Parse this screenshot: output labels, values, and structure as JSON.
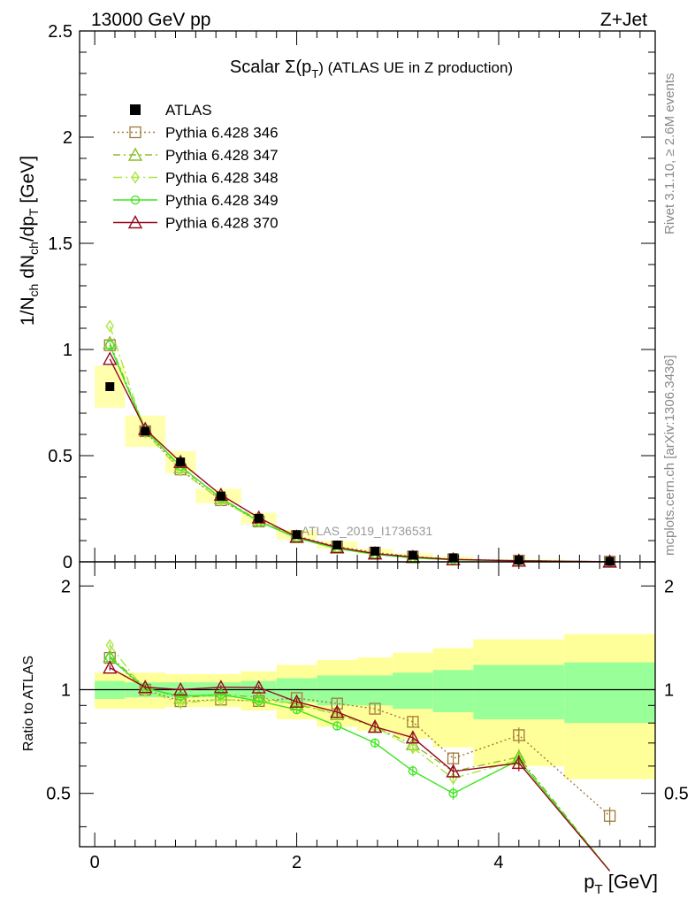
{
  "header": {
    "left": "13000 GeV pp",
    "right": "Z+Jet"
  },
  "side_labels": {
    "rivet": "Rivet 3.1.10, ≥ 2.6M events",
    "mcplots": "mcplots.cern.ch [arXiv:1306.3436]"
  },
  "chart_data": {
    "type": "line",
    "title_main": "Scalar Σ(p",
    "title_sub": "T",
    "title_rest": ") (ATLAS UE in Z production)",
    "watermark": "ATLAS_2019_I1736531",
    "xlabel": "p",
    "xlabel_sub": "T",
    "xlabel_unit": " [GeV]",
    "ylabel": "1/N_ch dN_ch/dp_T [GeV]",
    "ratio_ylabel": "Ratio to ATLAS",
    "xlim": [
      -0.15,
      5.55
    ],
    "ylim": [
      0,
      2.5
    ],
    "ratio_ylim": [
      0.35,
      2.35
    ],
    "ratio_scale": "log",
    "x_ticks": [
      "0",
      "2",
      "4"
    ],
    "y_ticks": [
      "0",
      "0.5",
      "1",
      "1.5",
      "2",
      "2.5"
    ],
    "ratio_ticks": [
      "0.5",
      "1",
      "2"
    ],
    "legend_position": "top-left",
    "x": [
      0.15,
      0.5,
      0.85,
      1.25,
      1.625,
      2.0,
      2.4,
      2.775,
      3.15,
      3.55,
      4.2,
      5.1
    ],
    "bin_edges": [
      0.0,
      0.3,
      0.7,
      1.0,
      1.45,
      1.8,
      2.2,
      2.6,
      2.95,
      3.35,
      3.75,
      4.65,
      5.55
    ],
    "data": {
      "name": "ATLAS",
      "values": [
        0.825,
        0.615,
        0.47,
        0.31,
        0.205,
        0.128,
        0.079,
        0.05,
        0.031,
        0.019,
        0.008,
        0.002
      ]
    },
    "band_inner": [
      0.06,
      0.05,
      0.05,
      0.05,
      0.06,
      0.08,
      0.1,
      0.1,
      0.12,
      0.14,
      0.18,
      0.2
    ],
    "band_outer": [
      0.12,
      0.12,
      0.11,
      0.11,
      0.13,
      0.18,
      0.22,
      0.24,
      0.28,
      0.32,
      0.4,
      0.45
    ],
    "series": [
      {
        "name": "Pythia 6.428 346",
        "color": "#a07a3c",
        "dash": "2,3",
        "marker": "square",
        "values": [
          1.02,
          0.615,
          0.435,
          0.29,
          0.19,
          0.121,
          0.072,
          0.044,
          0.025,
          0.012,
          0.0059,
          0.00086
        ]
      },
      {
        "name": "Pythia 6.428 347",
        "color": "#8cbe28",
        "dash": "8,4,2,4",
        "marker": "triangle",
        "values": [
          1.03,
          0.625,
          0.445,
          0.3,
          0.195,
          0.116,
          0.067,
          0.039,
          0.0215,
          0.011,
          0.0051,
          0.00058
        ]
      },
      {
        "name": "Pythia 6.428 348",
        "color": "#a8e63c",
        "dash": "10,4,2,4",
        "marker": "diamond",
        "values": [
          1.11,
          0.61,
          0.43,
          0.29,
          0.19,
          0.117,
          0.067,
          0.039,
          0.021,
          0.0105,
          0.005,
          0.00052
        ]
      },
      {
        "name": "Pythia 6.428 349",
        "color": "#3ce61e",
        "dash": "",
        "marker": "circle",
        "values": [
          1.02,
          0.62,
          0.45,
          0.3,
          0.19,
          0.112,
          0.062,
          0.035,
          0.018,
          0.0095,
          0.005,
          0.00046
        ]
      },
      {
        "name": "Pythia 6.428 370",
        "color": "#960a1e",
        "dash": "",
        "marker": "triangle",
        "values": [
          0.955,
          0.625,
          0.47,
          0.315,
          0.208,
          0.118,
          0.068,
          0.039,
          0.0225,
          0.011,
          0.0049,
          0.00054
        ]
      }
    ]
  }
}
